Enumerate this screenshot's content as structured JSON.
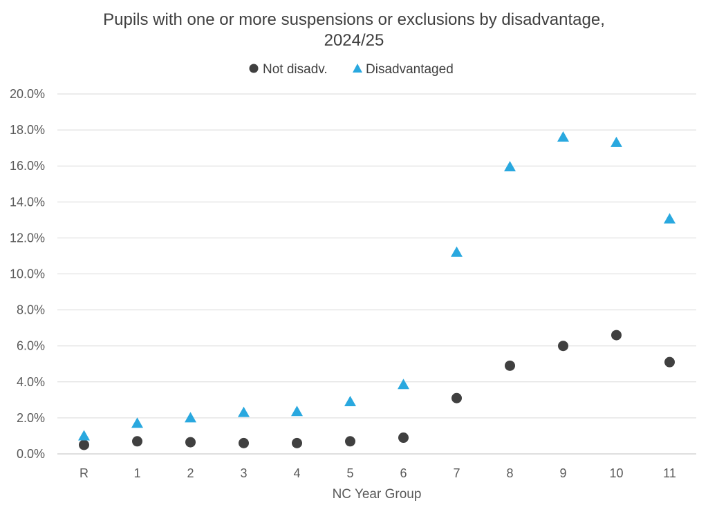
{
  "chart_data": {
    "type": "scatter",
    "title_lines": [
      "Pupils with one or more suspensions or exclusions by disadvantage,",
      "2024/25"
    ],
    "xlabel": "NC Year Group",
    "ylabel": "",
    "categories": [
      "R",
      "1",
      "2",
      "3",
      "4",
      "5",
      "6",
      "7",
      "8",
      "9",
      "10",
      "11"
    ],
    "ylim": [
      0,
      20
    ],
    "y_ticks": [
      "0.0%",
      "2.0%",
      "4.0%",
      "6.0%",
      "8.0%",
      "10.0%",
      "12.0%",
      "14.0%",
      "16.0%",
      "18.0%",
      "20.0%"
    ],
    "grid": true,
    "legend_position": "top",
    "series": [
      {
        "name": "Not disadv.",
        "marker": "circle",
        "color": "#404040",
        "values": [
          0.5,
          0.7,
          0.65,
          0.6,
          0.6,
          0.7,
          0.9,
          3.1,
          4.9,
          6.0,
          6.6,
          5.1
        ]
      },
      {
        "name": "Disadvantaged",
        "marker": "triangle",
        "color": "#29a8df",
        "values": [
          1.0,
          1.7,
          2.0,
          2.3,
          2.35,
          2.9,
          3.85,
          11.2,
          15.95,
          17.6,
          17.3,
          13.05
        ]
      }
    ]
  }
}
